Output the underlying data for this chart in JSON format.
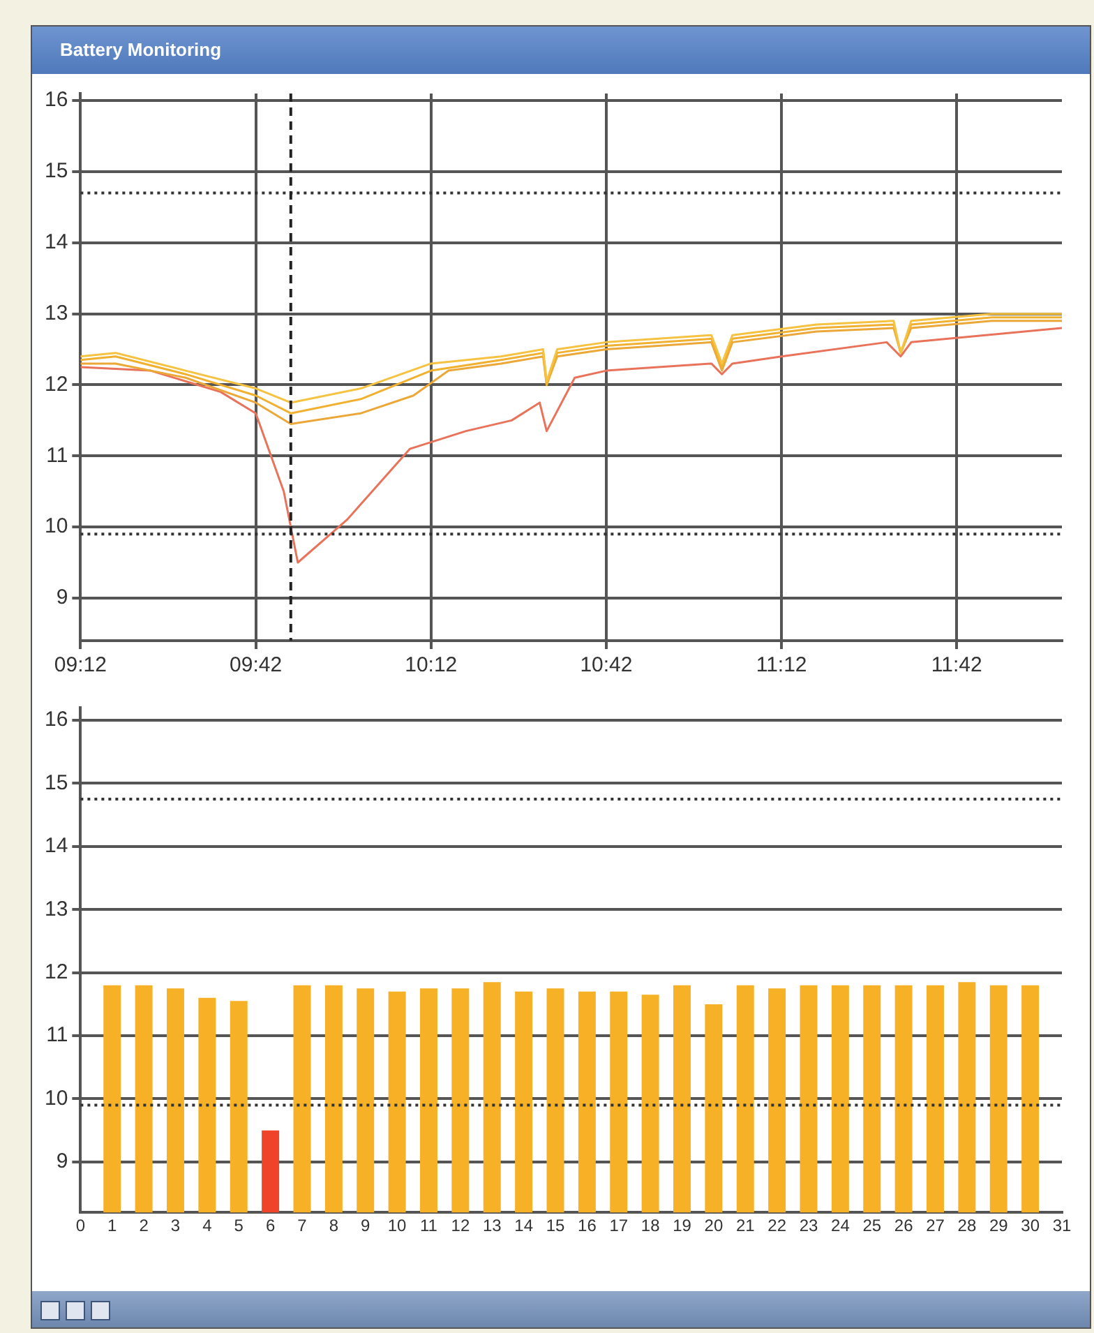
{
  "chart_data": [
    {
      "type": "line",
      "title": "Battery Monitoring",
      "xlim": [
        9.2,
        12.0
      ],
      "xticks": [
        {
          "value": 9.2,
          "label": "09:12"
        },
        {
          "value": 9.7,
          "label": "09:42"
        },
        {
          "value": 10.2,
          "label": "10:12"
        },
        {
          "value": 10.7,
          "label": "10:42"
        },
        {
          "value": 11.2,
          "label": "11:12"
        },
        {
          "value": 11.7,
          "label": "11:42"
        }
      ],
      "ylim": [
        8.4,
        16.1
      ],
      "yticks": [
        9,
        10,
        11,
        12,
        13,
        14,
        15,
        16
      ],
      "grid": true,
      "legend": false,
      "marker": "none",
      "line_style": "solid",
      "series": [
        {
          "color": "#f5c242",
          "x": [
            9.2,
            9.3,
            9.5,
            9.7,
            9.8,
            10.0,
            10.2,
            10.4,
            10.52,
            10.53,
            10.56,
            10.7,
            11.0,
            11.03,
            11.06,
            11.3,
            11.52,
            11.54,
            11.57,
            11.8,
            12.0
          ],
          "values": [
            12.4,
            12.45,
            12.2,
            11.95,
            11.75,
            11.95,
            12.3,
            12.4,
            12.5,
            12.05,
            12.5,
            12.6,
            12.7,
            12.3,
            12.7,
            12.85,
            12.9,
            12.45,
            12.9,
            13.0,
            13.0
          ]
        },
        {
          "color": "#f0b030",
          "x": [
            9.2,
            9.3,
            9.5,
            9.7,
            9.8,
            10.0,
            10.2,
            10.4,
            10.52,
            10.53,
            10.56,
            10.7,
            11.0,
            11.03,
            11.06,
            11.3,
            11.52,
            11.54,
            11.57,
            11.8,
            12.0
          ],
          "values": [
            12.35,
            12.4,
            12.15,
            11.85,
            11.6,
            11.8,
            12.2,
            12.35,
            12.45,
            12.0,
            12.45,
            12.55,
            12.65,
            12.25,
            12.65,
            12.8,
            12.85,
            12.45,
            12.85,
            12.95,
            12.95
          ]
        },
        {
          "color": "#eba838",
          "x": [
            9.2,
            9.3,
            9.5,
            9.7,
            9.8,
            10.0,
            10.15,
            10.25,
            10.4,
            10.52,
            10.53,
            10.56,
            10.7,
            11.0,
            11.03,
            11.06,
            11.3,
            11.52,
            11.54,
            11.57,
            11.8,
            12.0
          ],
          "values": [
            12.3,
            12.3,
            12.1,
            11.75,
            11.45,
            11.6,
            11.85,
            12.2,
            12.3,
            12.4,
            12.0,
            12.4,
            12.5,
            12.6,
            12.2,
            12.6,
            12.75,
            12.8,
            12.45,
            12.8,
            12.9,
            12.9
          ]
        },
        {
          "color": "#e8735a",
          "x": [
            9.2,
            9.4,
            9.6,
            9.7,
            9.78,
            9.82,
            9.96,
            10.14,
            10.3,
            10.43,
            10.51,
            10.53,
            10.61,
            10.7,
            11.0,
            11.03,
            11.06,
            11.2,
            11.5,
            11.54,
            11.57,
            12.0
          ],
          "values": [
            12.25,
            12.2,
            11.9,
            11.6,
            10.5,
            9.5,
            10.1,
            11.1,
            11.35,
            11.5,
            11.75,
            11.35,
            12.1,
            12.2,
            12.3,
            12.15,
            12.3,
            12.4,
            12.6,
            12.4,
            12.6,
            12.8
          ]
        }
      ],
      "ref_lines": [
        {
          "axis": "y",
          "value": 14.7,
          "line_style": "dotted",
          "color": "#333333"
        },
        {
          "axis": "y",
          "value": 9.9,
          "line_style": "dotted",
          "color": "#333333"
        },
        {
          "axis": "x",
          "value": 9.8,
          "line_style": "dashed",
          "color": "#222222"
        }
      ]
    },
    {
      "type": "bar",
      "x": [
        1,
        2,
        3,
        4,
        5,
        6,
        7,
        8,
        9,
        10,
        11,
        12,
        13,
        14,
        15,
        16,
        17,
        18,
        19,
        20,
        21,
        22,
        23,
        24,
        25,
        26,
        27,
        28,
        29,
        30
      ],
      "values": [
        11.8,
        11.8,
        11.75,
        11.6,
        11.55,
        9.5,
        11.8,
        11.8,
        11.75,
        11.7,
        11.75,
        11.75,
        11.85,
        11.7,
        11.75,
        11.7,
        11.7,
        11.65,
        11.8,
        11.5,
        11.8,
        11.75,
        11.8,
        11.8,
        11.8,
        11.8,
        11.8,
        11.85,
        11.8,
        11.8
      ],
      "colors": [
        "#f7b126",
        "#f7b126",
        "#f7b126",
        "#f7b126",
        "#f7b126",
        "#f0442a",
        "#f7b126",
        "#f7b126",
        "#f7b126",
        "#f7b126",
        "#f7b126",
        "#f7b126",
        "#f7b126",
        "#f7b126",
        "#f7b126",
        "#f7b126",
        "#f7b126",
        "#f7b126",
        "#f7b126",
        "#f7b126",
        "#f7b126",
        "#f7b126",
        "#f7b126",
        "#f7b126",
        "#f7b126",
        "#f7b126",
        "#f7b126",
        "#f7b126",
        "#f7b126",
        "#f7b126"
      ],
      "xlim": [
        0,
        31
      ],
      "xticks": [
        0,
        1,
        2,
        3,
        4,
        5,
        6,
        7,
        8,
        9,
        10,
        11,
        12,
        13,
        14,
        15,
        16,
        17,
        18,
        19,
        20,
        21,
        22,
        23,
        24,
        25,
        26,
        27,
        28,
        29,
        30,
        31
      ],
      "ylim": [
        8.2,
        16.2
      ],
      "yticks": [
        9,
        10,
        11,
        12,
        13,
        14,
        15,
        16
      ],
      "grid": "y",
      "legend": false,
      "ref_lines": [
        {
          "axis": "y",
          "value": 14.75,
          "line_style": "dotted",
          "color": "#333333"
        },
        {
          "axis": "y",
          "value": 9.9,
          "line_style": "dotted",
          "color": "#333333"
        }
      ]
    }
  ]
}
